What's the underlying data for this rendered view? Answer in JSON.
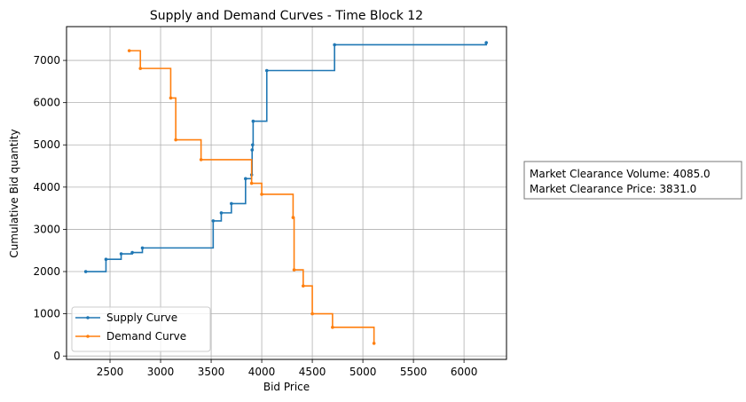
{
  "chart_data": {
    "type": "line",
    "title": "Supply and Demand Curves - Time Block 12",
    "xlabel": "Bid Price",
    "ylabel": "Cumulative Bid quantity",
    "xlim": [
      2070,
      6420
    ],
    "ylim": [
      -80,
      7800
    ],
    "xticks": [
      2500,
      3000,
      3500,
      4000,
      4500,
      5000,
      5500,
      6000
    ],
    "yticks": [
      0,
      1000,
      2000,
      3000,
      4000,
      5000,
      6000,
      7000
    ],
    "grid": true,
    "legend_position": "lower left",
    "step": "post",
    "series": [
      {
        "name": "Supply Curve",
        "color": "#1f77b4",
        "x": [
          2260,
          2460,
          2610,
          2720,
          2820,
          3520,
          3600,
          3700,
          3840,
          3900,
          3905,
          3910,
          3915,
          4050,
          4720,
          6220
        ],
        "y": [
          2000,
          2290,
          2420,
          2450,
          2560,
          3200,
          3390,
          3610,
          4200,
          4290,
          4880,
          5000,
          5560,
          6760,
          7370,
          7420
        ]
      },
      {
        "name": "Demand Curve",
        "color": "#ff7f0e",
        "x": [
          2690,
          2800,
          3100,
          3150,
          3400,
          3900,
          4000,
          4310,
          4320,
          4410,
          4500,
          4700,
          5110
        ],
        "y": [
          7230,
          6810,
          6110,
          5120,
          4650,
          4090,
          3830,
          3280,
          2040,
          1660,
          1000,
          680,
          300
        ]
      }
    ],
    "annotation": [
      "Market Clearance Volume: 4085.0",
      "Market Clearance Price: 3831.0"
    ]
  }
}
